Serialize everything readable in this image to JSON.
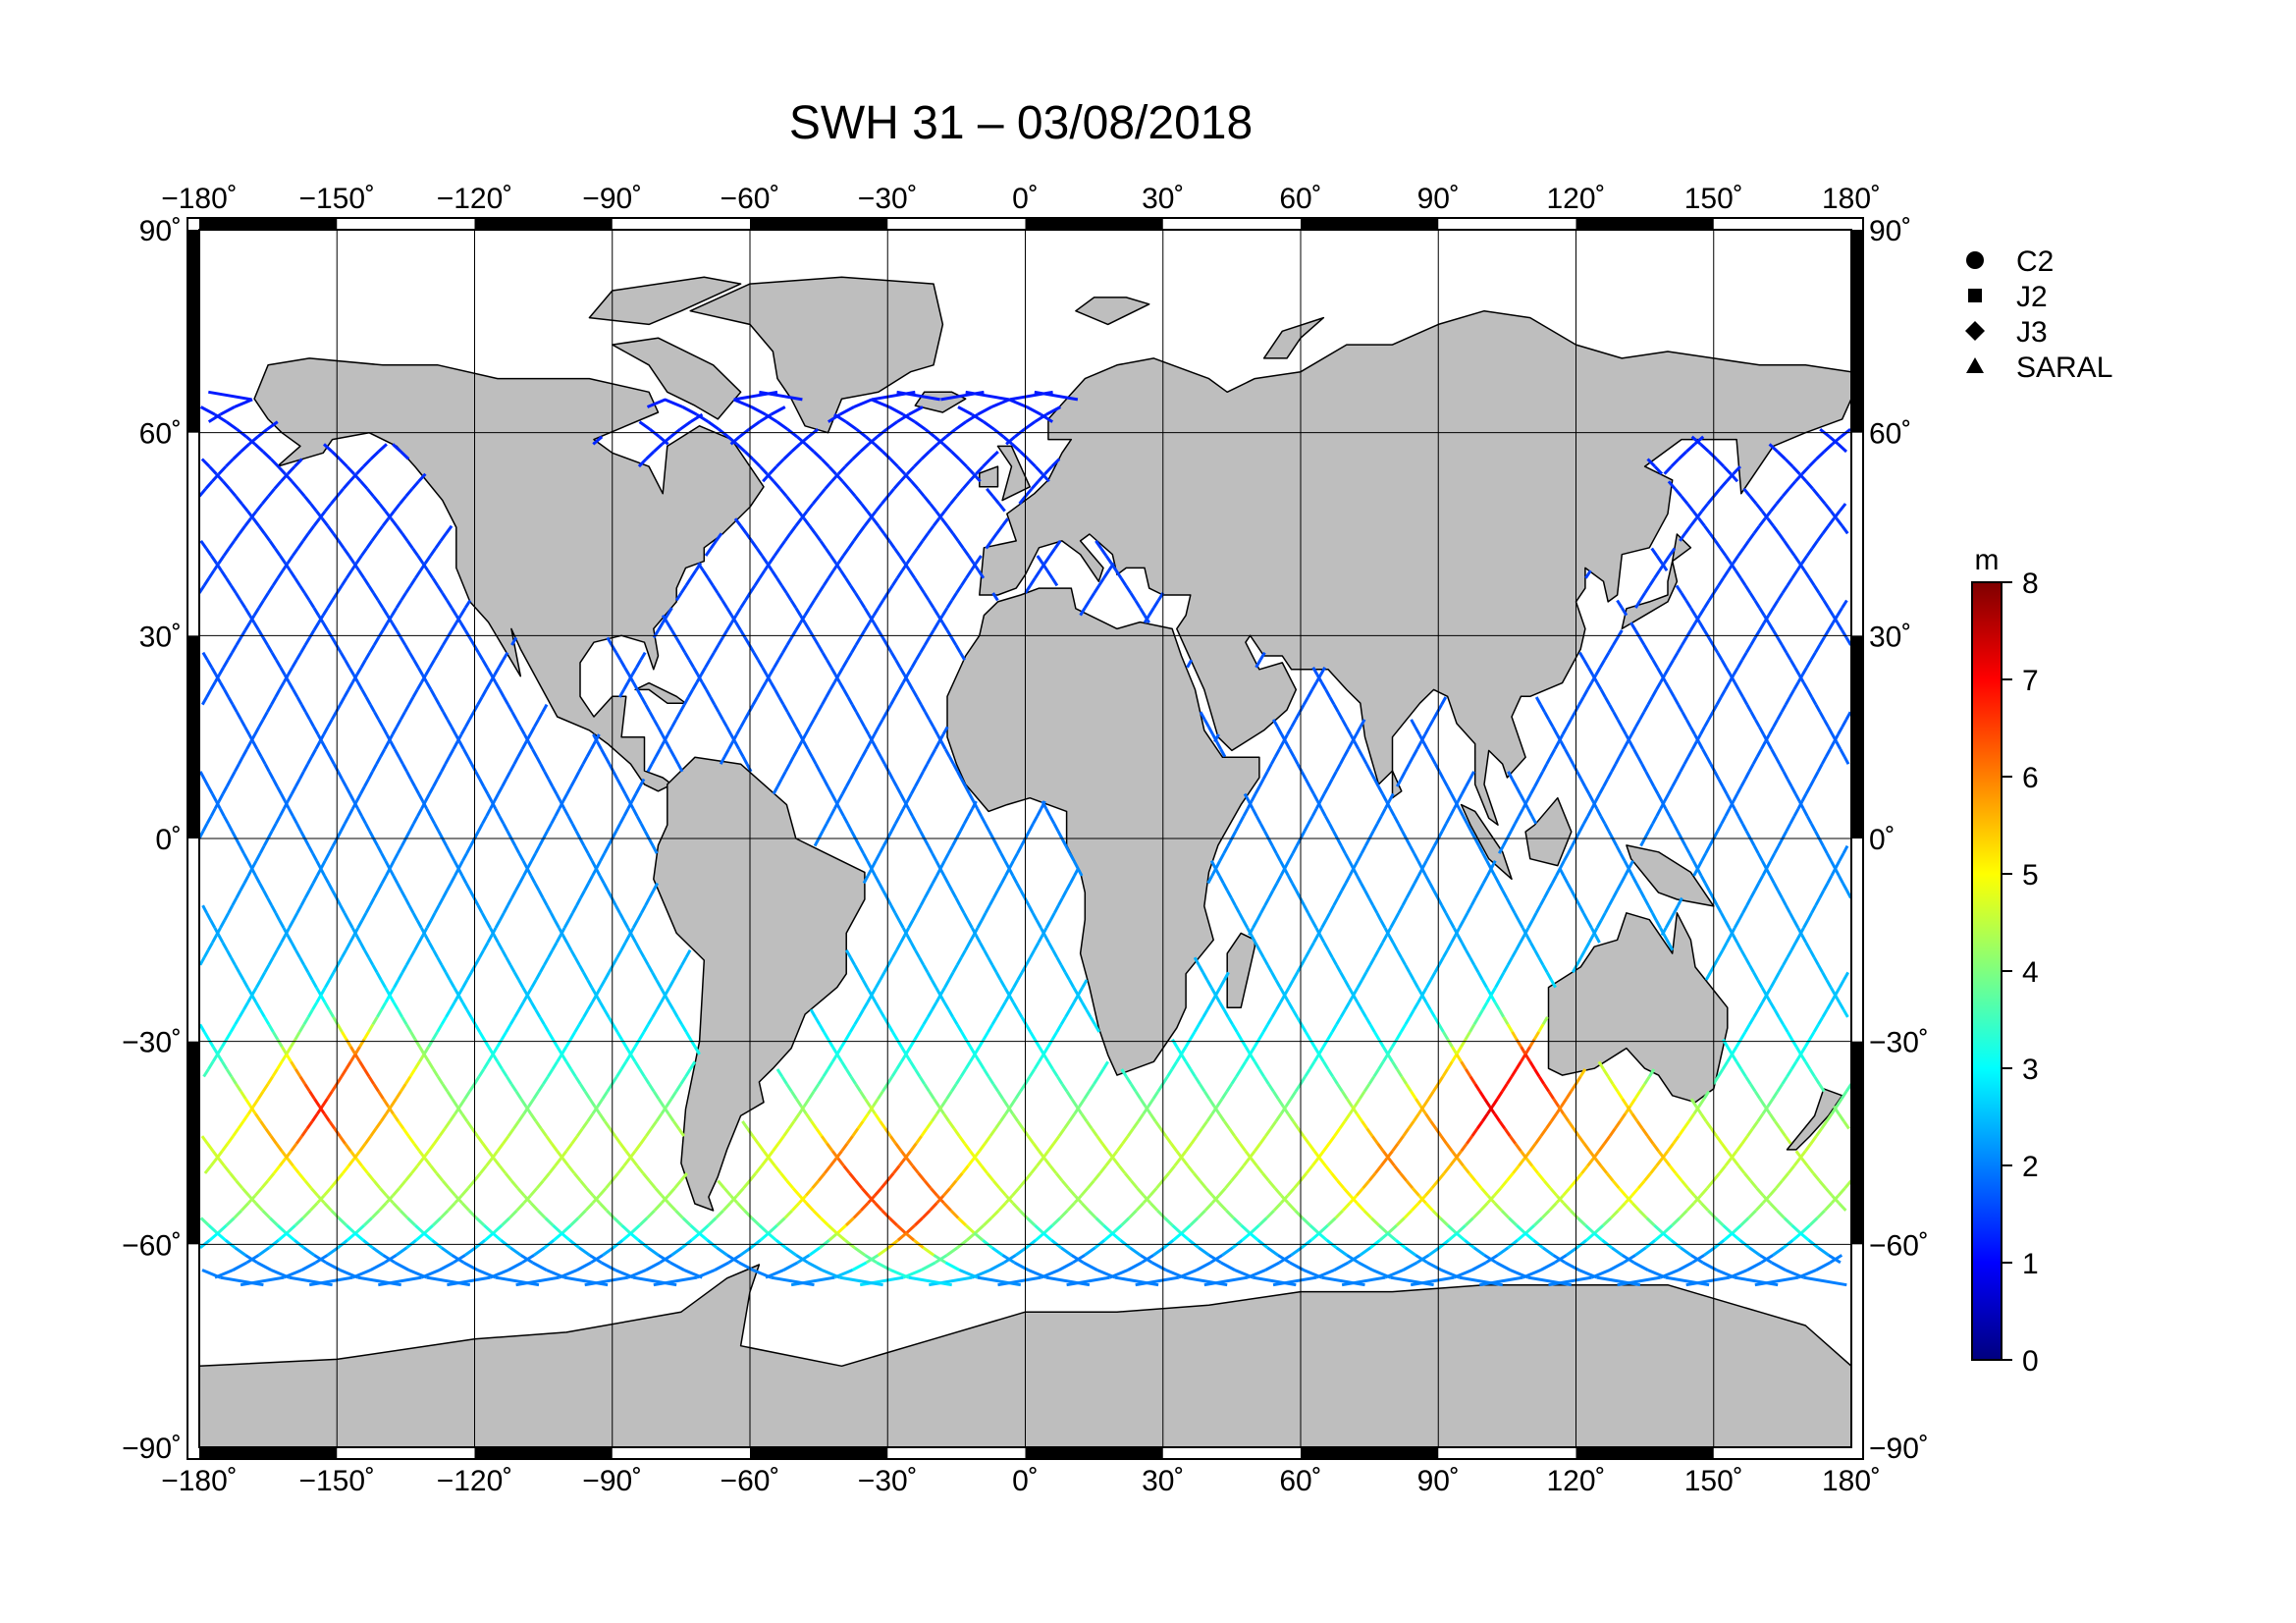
{
  "title": "SWH 31 – 03/08/2018",
  "map": {
    "projection": "equirectangular",
    "lon_range": [
      -180,
      180
    ],
    "lat_range": [
      -90,
      90
    ],
    "lon_ticks": [
      {
        "value": -180,
        "label": "−180˚"
      },
      {
        "value": -150,
        "label": "−150˚"
      },
      {
        "value": -120,
        "label": "−120˚"
      },
      {
        "value": -90,
        "label": "−90˚"
      },
      {
        "value": -60,
        "label": "−60˚"
      },
      {
        "value": -30,
        "label": "−30˚"
      },
      {
        "value": 0,
        "label": "0˚"
      },
      {
        "value": 30,
        "label": "30˚"
      },
      {
        "value": 60,
        "label": "60˚"
      },
      {
        "value": 90,
        "label": "90˚"
      },
      {
        "value": 120,
        "label": "120˚"
      },
      {
        "value": 150,
        "label": "150˚"
      },
      {
        "value": 180,
        "label": "180˚"
      }
    ],
    "lat_ticks_left": [
      {
        "value": 90,
        "label": "90˚"
      },
      {
        "value": 60,
        "label": "60˚"
      },
      {
        "value": 30,
        "label": "30˚"
      },
      {
        "value": 0,
        "label": "0˚"
      },
      {
        "value": -30,
        "label": "−30˚"
      },
      {
        "value": -60,
        "label": "−60˚"
      },
      {
        "value": -90,
        "label": "−90˚"
      }
    ],
    "lat_ticks_right": [
      {
        "value": 90,
        "label": "90˚"
      },
      {
        "value": 60,
        "label": "60˚"
      },
      {
        "value": 30,
        "label": "30˚"
      },
      {
        "value": 0,
        "label": "0˚"
      },
      {
        "value": -30,
        "label": "−30˚"
      },
      {
        "value": -60,
        "label": "−60˚"
      },
      {
        "value": -90,
        "label": "−90˚"
      }
    ],
    "land_color": "#bebebe",
    "ocean_color": "#ffffff",
    "grid": true
  },
  "legend": {
    "items": [
      {
        "symbol": "circle",
        "label": "C2"
      },
      {
        "symbol": "square",
        "label": "J2"
      },
      {
        "symbol": "diamond",
        "label": "J3"
      },
      {
        "symbol": "triangle",
        "label": "SARAL"
      }
    ]
  },
  "colorbar": {
    "unit": "m",
    "min": 0,
    "max": 8,
    "ticks": [
      {
        "value": 8,
        "label": "8"
      },
      {
        "value": 7,
        "label": "7"
      },
      {
        "value": 6,
        "label": "6"
      },
      {
        "value": 5,
        "label": "5"
      },
      {
        "value": 4,
        "label": "4"
      },
      {
        "value": 3,
        "label": "3"
      },
      {
        "value": 2,
        "label": "2"
      },
      {
        "value": 1,
        "label": "1"
      },
      {
        "value": 0,
        "label": "0"
      }
    ],
    "colors": [
      "#00007f",
      "#0000ff",
      "#007fff",
      "#00ffff",
      "#7fff7f",
      "#ffff00",
      "#ff7f00",
      "#ff0000",
      "#7f0000"
    ]
  },
  "tracks": {
    "description_value_unit": "m",
    "ascending_lon_starts": [
      -180,
      -165,
      -150,
      -135,
      -120,
      -105,
      -90,
      -75,
      -60,
      -45,
      -30,
      -15,
      0,
      15,
      30,
      45,
      60,
      75,
      90,
      105,
      120,
      135,
      150,
      165
    ],
    "descending_lon_starts": [
      -172,
      -157,
      -142,
      -127,
      -112,
      -97,
      -82,
      -67,
      -52,
      -37,
      -22,
      -7,
      8,
      23,
      38,
      53,
      68,
      83,
      98,
      113,
      128,
      143,
      158,
      173
    ],
    "lat_limit": 66,
    "swh_by_lat": [
      {
        "lat": 66,
        "swh": 1.2
      },
      {
        "lat": 50,
        "swh": 1.4
      },
      {
        "lat": 30,
        "swh": 1.6
      },
      {
        "lat": 10,
        "swh": 1.8
      },
      {
        "lat": -10,
        "swh": 2.2
      },
      {
        "lat": -25,
        "swh": 2.6
      },
      {
        "lat": -35,
        "swh": 3.4
      },
      {
        "lat": -45,
        "swh": 4.6
      },
      {
        "lat": -55,
        "swh": 4.2
      },
      {
        "lat": -62,
        "swh": 2.0
      }
    ],
    "hotspots": [
      {
        "lon": 100,
        "lat": -40,
        "swh": 7.2
      },
      {
        "lon": 110,
        "lat": -35,
        "swh": 7.0
      },
      {
        "lon": -155,
        "lat": -40,
        "swh": 6.8
      },
      {
        "lon": -145,
        "lat": -35,
        "swh": 6.4
      },
      {
        "lon": -35,
        "lat": -50,
        "swh": 6.5
      },
      {
        "lon": -25,
        "lat": -55,
        "swh": 6.6
      },
      {
        "lon": 80,
        "lat": -48,
        "swh": 6.0
      },
      {
        "lon": 130,
        "lat": -45,
        "swh": 6.0
      }
    ]
  }
}
